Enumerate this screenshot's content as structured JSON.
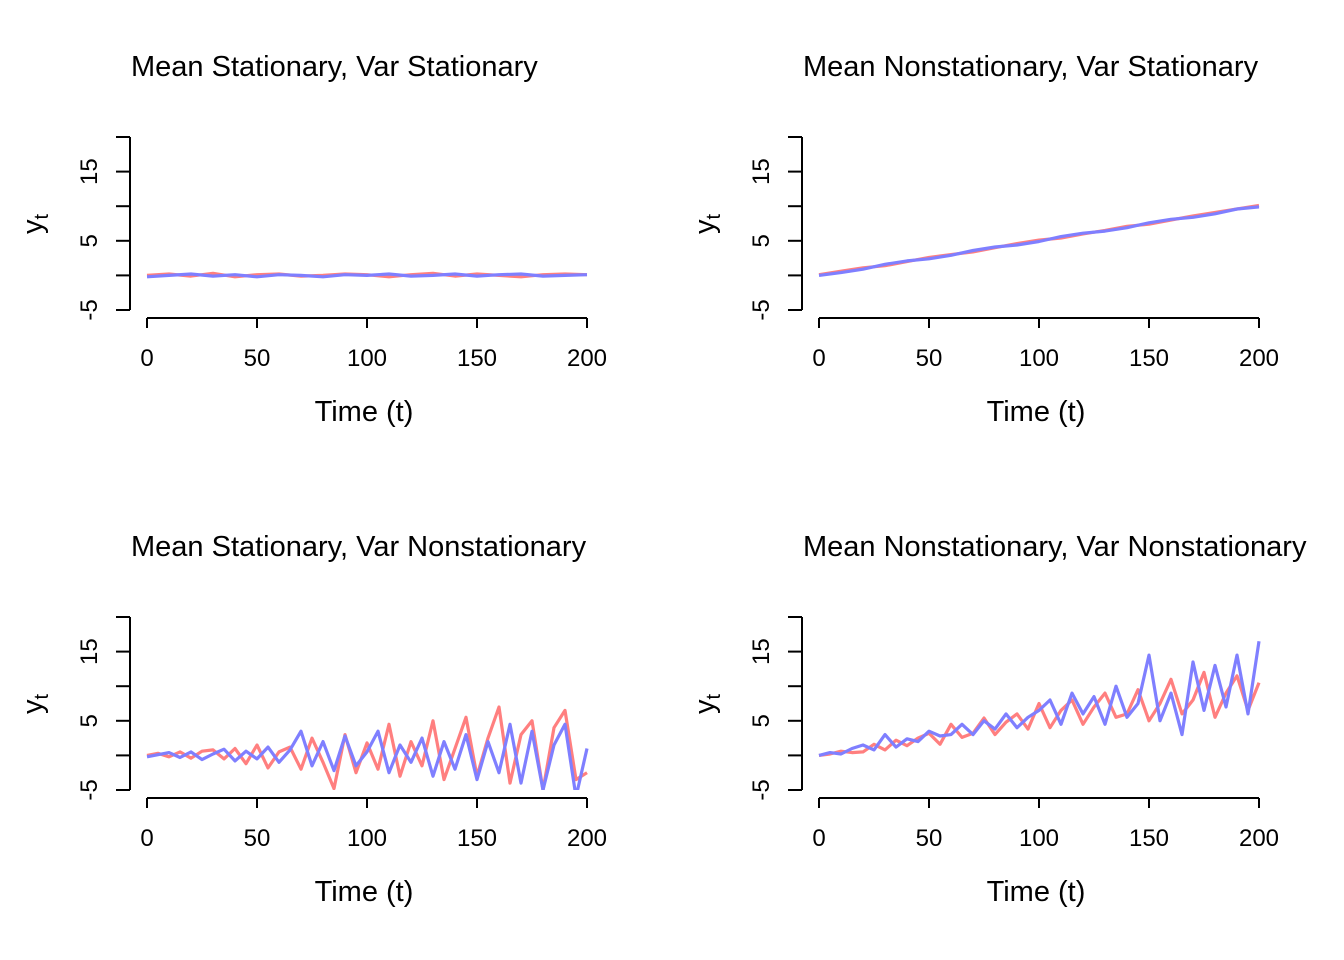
{
  "chart_data": [
    {
      "type": "line",
      "title": "Mean Stationary, Var Stationary",
      "xlabel": "Time (t)",
      "ylabel": "y",
      "ylabel_sub": "t",
      "xlim": [
        0,
        200
      ],
      "ylim": [
        -5,
        20
      ],
      "xticks": [
        0,
        50,
        100,
        150,
        200
      ],
      "yticks": [
        -5,
        0,
        5,
        10,
        15,
        20
      ],
      "ytick_labels": [
        "-5",
        "",
        "5",
        "",
        "15",
        ""
      ],
      "grid": false,
      "x": [
        0,
        10,
        20,
        30,
        40,
        50,
        60,
        70,
        80,
        90,
        100,
        110,
        120,
        130,
        140,
        150,
        160,
        170,
        180,
        190,
        200
      ],
      "series": [
        {
          "color": "#FF7F7F",
          "values": [
            0,
            0.2,
            -0.1,
            0.3,
            -0.2,
            0.1,
            0.2,
            -0.1,
            0,
            0.2,
            0.1,
            -0.2,
            0.1,
            0.3,
            -0.1,
            0.2,
            0,
            -0.2,
            0.1,
            0.2,
            0.1
          ]
        },
        {
          "color": "#7F7FFF",
          "values": [
            -0.2,
            0,
            0.2,
            -0.1,
            0.1,
            -0.2,
            0.1,
            0,
            -0.2,
            0.1,
            0,
            0.2,
            -0.1,
            0,
            0.2,
            -0.1,
            0.1,
            0.2,
            -0.1,
            0,
            0.1
          ]
        }
      ]
    },
    {
      "type": "line",
      "title": "Mean Nonstationary, Var Stationary",
      "xlabel": "Time (t)",
      "ylabel": "y",
      "ylabel_sub": "t",
      "xlim": [
        0,
        200
      ],
      "ylim": [
        -5,
        20
      ],
      "xticks": [
        0,
        50,
        100,
        150,
        200
      ],
      "yticks": [
        -5,
        0,
        5,
        10,
        15,
        20
      ],
      "ytick_labels": [
        "-5",
        "",
        "5",
        "",
        "15",
        ""
      ],
      "grid": false,
      "x": [
        0,
        10,
        20,
        30,
        40,
        50,
        60,
        70,
        80,
        90,
        100,
        110,
        120,
        130,
        140,
        150,
        160,
        170,
        180,
        190,
        200
      ],
      "series": [
        {
          "color": "#FF7F7F",
          "values": [
            0.1,
            0.6,
            1.1,
            1.4,
            2.0,
            2.6,
            3.0,
            3.4,
            4.0,
            4.6,
            5.1,
            5.4,
            6.0,
            6.5,
            7.1,
            7.4,
            8.0,
            8.6,
            9.1,
            9.6,
            10.1
          ]
        },
        {
          "color": "#7F7FFF",
          "values": [
            0,
            0.4,
            0.9,
            1.6,
            2.1,
            2.4,
            2.9,
            3.6,
            4.1,
            4.4,
            4.9,
            5.6,
            6.1,
            6.4,
            6.9,
            7.6,
            8.1,
            8.4,
            8.9,
            9.6,
            9.9
          ]
        }
      ]
    },
    {
      "type": "line",
      "title": "Mean Stationary, Var Nonstationary",
      "xlabel": "Time (t)",
      "ylabel": "y",
      "ylabel_sub": "t",
      "xlim": [
        0,
        200
      ],
      "ylim": [
        -5,
        20
      ],
      "xticks": [
        0,
        50,
        100,
        150,
        200
      ],
      "yticks": [
        -5,
        0,
        5,
        10,
        15,
        20
      ],
      "ytick_labels": [
        "-5",
        "",
        "5",
        "",
        "15",
        ""
      ],
      "grid": false,
      "x": [
        0,
        5,
        10,
        15,
        20,
        25,
        30,
        35,
        40,
        45,
        50,
        55,
        60,
        65,
        70,
        75,
        80,
        85,
        90,
        95,
        100,
        105,
        110,
        115,
        120,
        125,
        130,
        135,
        140,
        145,
        150,
        155,
        160,
        165,
        170,
        175,
        180,
        185,
        190,
        195,
        200
      ],
      "series": [
        {
          "color": "#FF7F7F",
          "values": [
            0,
            0.3,
            -0.2,
            0.5,
            -0.4,
            0.6,
            0.8,
            -0.5,
            1.0,
            -1.2,
            1.5,
            -1.8,
            0.5,
            1.2,
            -2.0,
            2.5,
            -1.0,
            -4.8,
            3.0,
            -2.5,
            1.8,
            -2.0,
            4.5,
            -3.0,
            2.0,
            -1.5,
            5.0,
            -3.5,
            1.0,
            5.5,
            -3.0,
            2.5,
            7.0,
            -4.0,
            3.0,
            5.0,
            -5.0,
            4.0,
            6.5,
            -3.5,
            -2.5
          ]
        },
        {
          "color": "#7F7FFF",
          "values": [
            -0.2,
            0.1,
            0.4,
            -0.3,
            0.5,
            -0.6,
            0.2,
            0.9,
            -0.8,
            0.6,
            -0.5,
            1.2,
            -1.0,
            0.8,
            3.5,
            -1.5,
            2.0,
            -2.2,
            2.8,
            -1.5,
            0.5,
            3.5,
            -2.5,
            1.5,
            -1.0,
            2.5,
            -3.0,
            2.0,
            -2.0,
            3.0,
            -3.5,
            2.0,
            -2.5,
            4.5,
            -4.0,
            3.5,
            -5.0,
            1.5,
            4.5,
            -6.0,
            1.0
          ]
        }
      ]
    },
    {
      "type": "line",
      "title": "Mean Nonstationary, Var Nonstationary",
      "xlabel": "Time (t)",
      "ylabel": "y",
      "ylabel_sub": "t",
      "xlim": [
        0,
        200
      ],
      "ylim": [
        -5,
        20
      ],
      "xticks": [
        0,
        50,
        100,
        150,
        200
      ],
      "yticks": [
        -5,
        0,
        5,
        10,
        15,
        20
      ],
      "ytick_labels": [
        "-5",
        "",
        "5",
        "",
        "15",
        ""
      ],
      "grid": false,
      "x": [
        0,
        5,
        10,
        15,
        20,
        25,
        30,
        35,
        40,
        45,
        50,
        55,
        60,
        65,
        70,
        75,
        80,
        85,
        90,
        95,
        100,
        105,
        110,
        115,
        120,
        125,
        130,
        135,
        140,
        145,
        150,
        155,
        160,
        165,
        170,
        175,
        180,
        185,
        190,
        195,
        200
      ],
      "series": [
        {
          "color": "#FF7F7F",
          "values": [
            0,
            0.2,
            0.6,
            0.4,
            0.5,
            1.6,
            0.8,
            2.2,
            1.4,
            2.5,
            3.2,
            1.6,
            4.5,
            2.6,
            3.2,
            5.4,
            3.0,
            4.8,
            6.0,
            3.8,
            7.5,
            4.0,
            6.5,
            8.0,
            4.5,
            7.0,
            9.0,
            5.5,
            6.0,
            9.5,
            5.0,
            7.5,
            11.0,
            6.0,
            8.0,
            12.0,
            5.5,
            9.0,
            11.5,
            6.5,
            10.5
          ]
        },
        {
          "color": "#7F7FFF",
          "values": [
            0,
            0.4,
            0.2,
            1.0,
            1.5,
            0.8,
            3.0,
            1.2,
            2.4,
            2.0,
            3.5,
            2.8,
            3.0,
            4.5,
            3.0,
            5.0,
            3.8,
            6.0,
            4.0,
            5.5,
            6.5,
            8.0,
            4.5,
            9.0,
            6.0,
            8.5,
            4.5,
            10.0,
            5.5,
            7.5,
            14.5,
            5.0,
            9.0,
            3.0,
            13.5,
            6.5,
            13.0,
            7.0,
            14.5,
            6.0,
            16.5
          ]
        }
      ]
    }
  ]
}
